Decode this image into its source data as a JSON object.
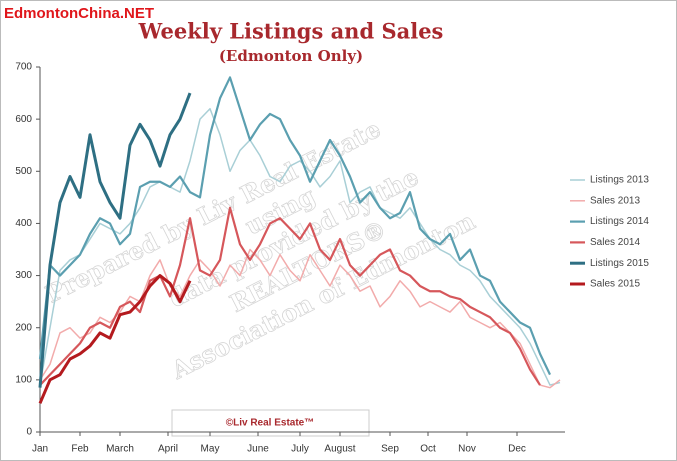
{
  "chart_data": {
    "type": "line",
    "watermark": "EdmontonChina.NET",
    "title": "Weekly Listings and Sales",
    "subtitle": "(Edmonton Only)",
    "credit": "©Liv Real Estate™",
    "annotations": [
      "Prepared by Liv Real Estate",
      "using",
      "data provided by the",
      "REALTORS®",
      "Association of Edmonton"
    ],
    "x": [
      0,
      1,
      2,
      3,
      4,
      5,
      6,
      7,
      8,
      9,
      10,
      11,
      12,
      13,
      14,
      15,
      16,
      17,
      18,
      19,
      20,
      21,
      22,
      23,
      24,
      25,
      26,
      27,
      28,
      29,
      30,
      31,
      32,
      33,
      34,
      35,
      36,
      37,
      38,
      39,
      40,
      41,
      42,
      43,
      44,
      45,
      46,
      47,
      48,
      49,
      50,
      51,
      52
    ],
    "xlim": [
      0,
      52.5
    ],
    "xticks": [
      {
        "value": 0,
        "label": "Jan"
      },
      {
        "value": 4,
        "label": "Feb"
      },
      {
        "value": 8,
        "label": "March"
      },
      {
        "value": 12.8,
        "label": "April"
      },
      {
        "value": 17,
        "label": "May"
      },
      {
        "value": 21.8,
        "label": "June"
      },
      {
        "value": 26,
        "label": "July"
      },
      {
        "value": 30,
        "label": "August"
      },
      {
        "value": 35,
        "label": "Sep"
      },
      {
        "value": 38.8,
        "label": "Oct"
      },
      {
        "value": 42.7,
        "label": "Nov"
      },
      {
        "value": 47.7,
        "label": "Dec"
      }
    ],
    "ylim": [
      0,
      700
    ],
    "yticks": [
      0,
      100,
      200,
      300,
      400,
      500,
      600,
      700
    ],
    "series": [
      {
        "name": "Listings 2013",
        "color": "#a9cfd6",
        "values": [
          90,
          200,
          310,
          330,
          340,
          370,
          400,
          390,
          380,
          400,
          430,
          470,
          480,
          470,
          460,
          520,
          600,
          620,
          570,
          500,
          540,
          560,
          530,
          490,
          480,
          510,
          520,
          500,
          470,
          490,
          520,
          440,
          460,
          470,
          430,
          420,
          410,
          430,
          400,
          370,
          350,
          340,
          320,
          310,
          290,
          260,
          240,
          220,
          200,
          170,
          130,
          90,
          95
        ]
      },
      {
        "name": "Sales 2013",
        "color": "#f2abab",
        "values": [
          100,
          130,
          190,
          200,
          180,
          190,
          220,
          210,
          230,
          260,
          250,
          300,
          330,
          280,
          260,
          300,
          330,
          310,
          280,
          320,
          300,
          350,
          330,
          300,
          340,
          310,
          290,
          340,
          310,
          280,
          320,
          300,
          270,
          280,
          240,
          260,
          290,
          270,
          240,
          250,
          240,
          230,
          250,
          220,
          210,
          200,
          210,
          190,
          170,
          130,
          90,
          85,
          100
        ]
      },
      {
        "name": "Listings 2014",
        "color": "#5b9fb0",
        "values": [
          140,
          320,
          300,
          320,
          340,
          380,
          410,
          400,
          360,
          380,
          470,
          480,
          480,
          470,
          490,
          460,
          450,
          570,
          640,
          680,
          620,
          560,
          590,
          610,
          600,
          560,
          530,
          480,
          520,
          560,
          530,
          490,
          440,
          460,
          430,
          410,
          420,
          460,
          390,
          370,
          360,
          380,
          330,
          350,
          300,
          290,
          250,
          230,
          210,
          200,
          150,
          110,
          null
        ]
      },
      {
        "name": "Sales 2014",
        "color": "#d6575b",
        "values": [
          90,
          110,
          130,
          150,
          170,
          200,
          210,
          200,
          240,
          250,
          230,
          290,
          300,
          260,
          320,
          410,
          310,
          300,
          330,
          430,
          360,
          330,
          360,
          400,
          410,
          390,
          370,
          400,
          350,
          330,
          370,
          320,
          300,
          320,
          340,
          350,
          310,
          300,
          280,
          270,
          270,
          260,
          255,
          240,
          230,
          220,
          200,
          190,
          160,
          120,
          90,
          null,
          null
        ]
      },
      {
        "name": "Listings 2015",
        "color": "#2e6f83",
        "values": [
          85,
          320,
          440,
          490,
          450,
          570,
          480,
          440,
          410,
          550,
          590,
          560,
          510,
          570,
          600,
          650,
          null,
          null,
          null,
          null,
          null,
          null,
          null,
          null,
          null,
          null,
          null,
          null,
          null,
          null,
          null,
          null,
          null,
          null,
          null,
          null,
          null,
          null,
          null,
          null,
          null,
          null,
          null,
          null,
          null,
          null,
          null,
          null,
          null,
          null,
          null,
          null,
          null
        ]
      },
      {
        "name": "Sales 2015",
        "color": "#b41a1e",
        "values": [
          55,
          100,
          110,
          140,
          150,
          165,
          190,
          180,
          225,
          230,
          250,
          280,
          300,
          285,
          250,
          290,
          null,
          null,
          null,
          null,
          null,
          null,
          null,
          null,
          null,
          null,
          null,
          null,
          null,
          null,
          null,
          null,
          null,
          null,
          null,
          null,
          null,
          null,
          null,
          null,
          null,
          null,
          null,
          null,
          null,
          null,
          null,
          null,
          null,
          null,
          null,
          null,
          null
        ]
      }
    ]
  }
}
